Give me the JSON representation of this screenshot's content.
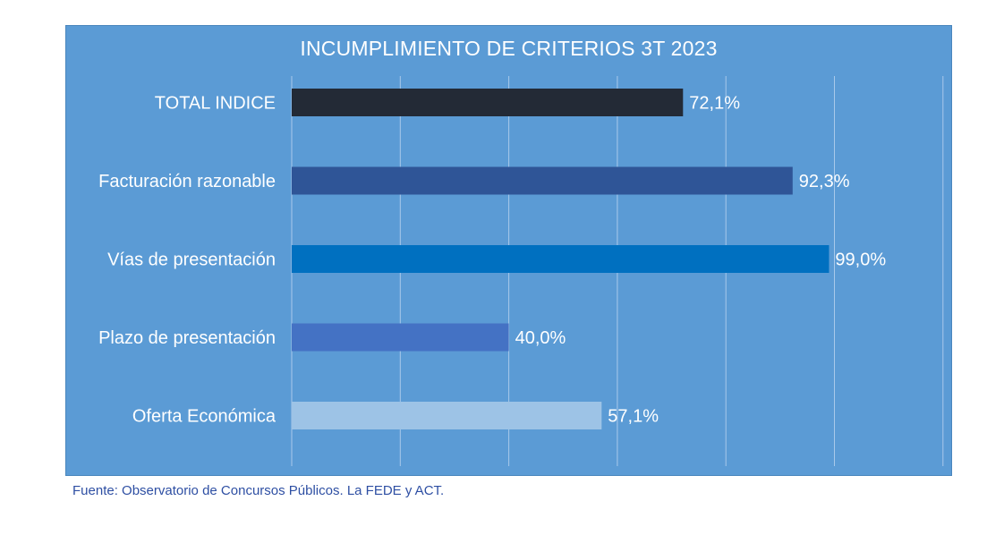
{
  "chart_data": {
    "type": "bar",
    "orientation": "horizontal",
    "title": "INCUMPLIMIENTO DE CRITERIOS 3T 2023",
    "xlabel": "",
    "ylabel": "",
    "xlim": [
      0,
      100
    ],
    "grid": true,
    "categories": [
      "TOTAL INDICE",
      "Facturación razonable",
      "Vías de presentación",
      "Plazo de presentación",
      "Oferta Económica"
    ],
    "values": [
      72.1,
      92.3,
      99.0,
      40.0,
      57.1
    ],
    "labels": [
      "72,1%",
      "92,3%",
      "99,0%",
      "40,0%",
      "57,1%"
    ],
    "colors": [
      "#232a36",
      "#2f5597",
      "#0070c0",
      "#4472c4",
      "#9dc3e6"
    ],
    "background": "#5b9bd5",
    "gridline_color": "#a9c9ea",
    "label_color": "#ffffff"
  },
  "source": "Fuente: Observatorio de Concursos Públicos. La FEDE y ACT."
}
